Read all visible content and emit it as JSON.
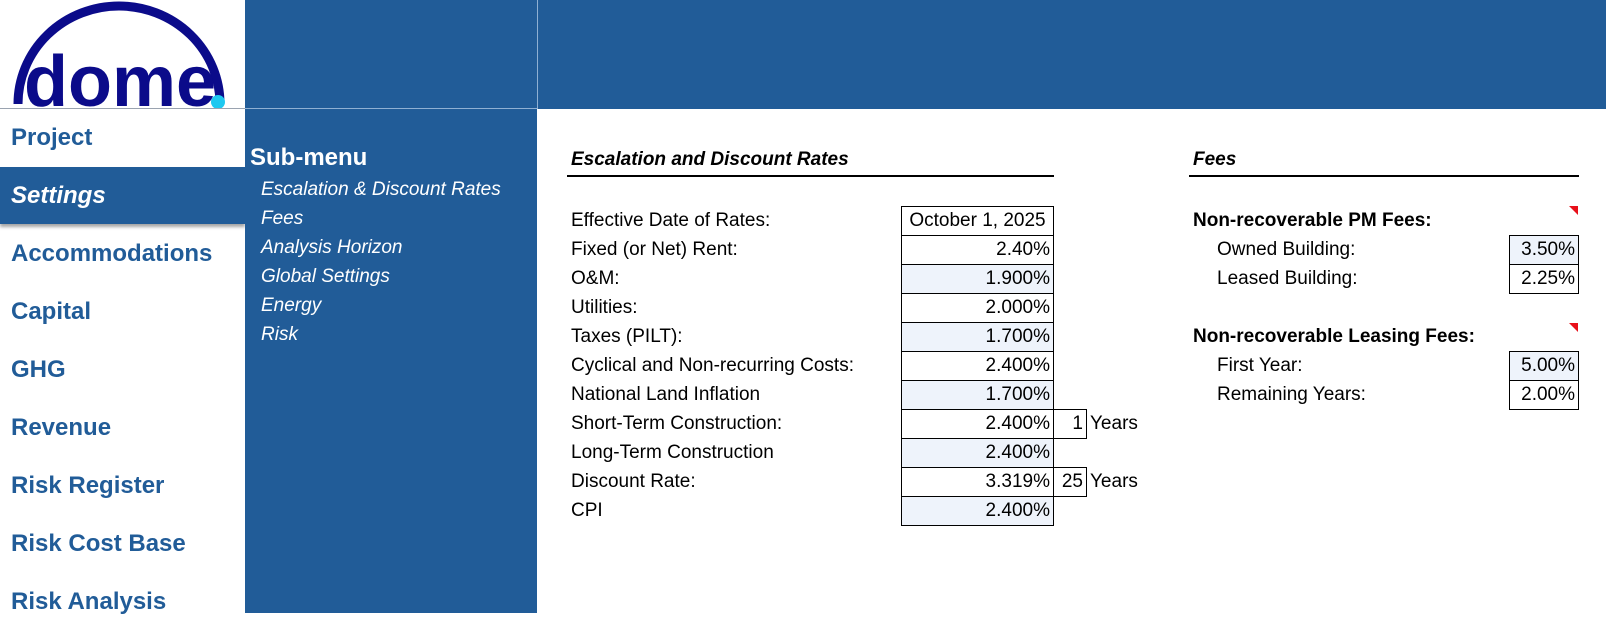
{
  "logo": {
    "text": "dome"
  },
  "nav": {
    "items": [
      {
        "label": "Project",
        "active": false
      },
      {
        "label": "Settings",
        "active": true
      },
      {
        "label": "Accommodations",
        "active": false
      },
      {
        "label": "Capital",
        "active": false
      },
      {
        "label": "GHG",
        "active": false
      },
      {
        "label": "Revenue",
        "active": false
      },
      {
        "label": "Risk Register",
        "active": false
      },
      {
        "label": "Risk Cost Base",
        "active": false
      },
      {
        "label": "Risk Analysis",
        "active": false
      }
    ]
  },
  "submenu": {
    "title": "Sub-menu",
    "items": [
      "Escalation & Discount Rates",
      "Fees",
      "Analysis Horizon",
      "Global Settings",
      "Energy",
      "Risk"
    ]
  },
  "escalation": {
    "title": "Escalation and Discount Rates",
    "rows": [
      {
        "label": "Effective Date of Rates:",
        "value": "October 1, 2025"
      },
      {
        "label": "Fixed (or Net) Rent:",
        "value": "2.40%"
      },
      {
        "label": "O&M:",
        "value": "1.900%"
      },
      {
        "label": "Utilities:",
        "value": "2.000%"
      },
      {
        "label": "Taxes (PILT):",
        "value": "1.700%"
      },
      {
        "label": "Cyclical and Non-recurring Costs:",
        "value": "2.400%"
      },
      {
        "label": "National Land Inflation",
        "value": "1.700%"
      },
      {
        "label": "Short-Term Construction:",
        "value": "2.400%",
        "years": "1",
        "years_label": "Years"
      },
      {
        "label": "Long-Term Construction",
        "value": "2.400%"
      },
      {
        "label": "Discount Rate:",
        "value": "3.319%",
        "years": "25",
        "years_label": "Years"
      },
      {
        "label": "CPI",
        "value": "2.400%"
      }
    ]
  },
  "fees": {
    "title": "Fees",
    "pm": {
      "heading": "Non-recoverable PM Fees:",
      "rows": [
        {
          "label": "Owned Building:",
          "value": "3.50%"
        },
        {
          "label": "Leased Building:",
          "value": "2.25%"
        }
      ]
    },
    "leasing": {
      "heading": "Non-recoverable Leasing Fees:",
      "rows": [
        {
          "label": "First Year:",
          "value": "5.00%"
        },
        {
          "label": "Remaining Years:",
          "value": "2.00%"
        }
      ]
    }
  },
  "colors": {
    "brand_blue": "#215C98",
    "logo_navy": "#0B0B8A",
    "logo_dot": "#1EC8F0",
    "cell_shade": "#EEF3FB",
    "comment_marker": "#E8101A"
  }
}
